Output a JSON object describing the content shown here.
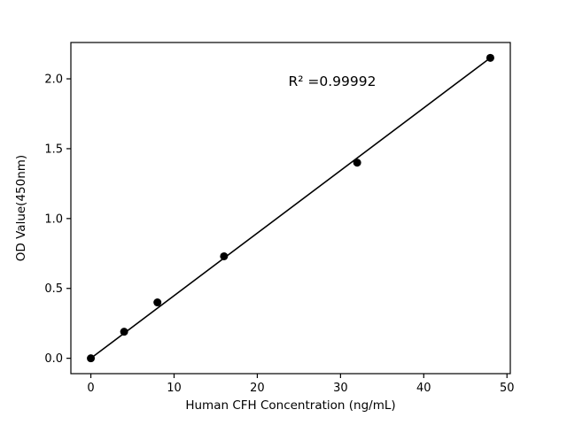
{
  "chart_data": {
    "type": "scatter",
    "title": "",
    "xlabel": "Human CFH Concentration (ng/mL)",
    "ylabel": "OD Value(450nm)",
    "annotation": "R² =0.99992",
    "annotation_pos": {
      "x": 29,
      "y": 1.95
    },
    "x": [
      0,
      4,
      8,
      16,
      32,
      48
    ],
    "y": [
      0.0,
      0.19,
      0.4,
      0.73,
      1.4,
      2.15
    ],
    "fit_line": {
      "x1": 0,
      "y1": 0.0,
      "x2": 48,
      "y2": 2.15
    },
    "xlim": [
      -2.4,
      50.4
    ],
    "ylim": [
      -0.11,
      2.26
    ],
    "xticks": [
      0,
      10,
      20,
      30,
      40,
      50
    ],
    "ytick_labels": [
      "0.0",
      "0.5",
      "1.0",
      "1.5",
      "2.0"
    ],
    "yticks": [
      0.0,
      0.5,
      1.0,
      1.5,
      2.0
    ],
    "grid": false,
    "legend": "none",
    "marker_color": "#000000",
    "line_color": "#000000",
    "background_color": "#ffffff"
  }
}
